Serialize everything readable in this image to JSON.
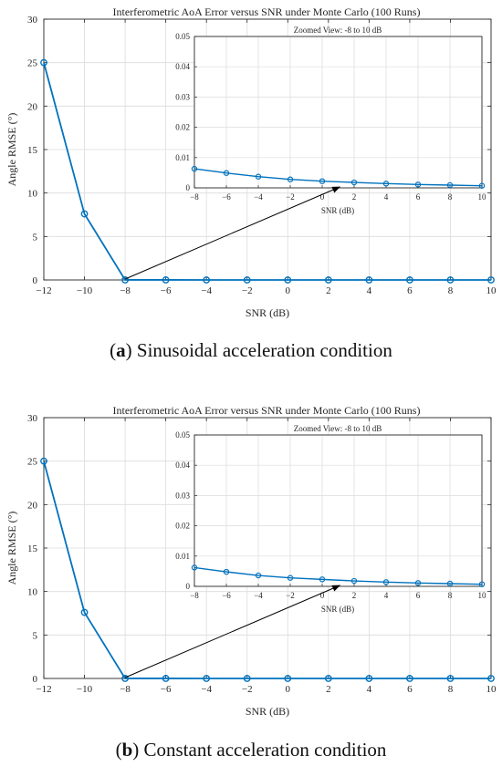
{
  "chart_data": [
    {
      "type": "line",
      "title": "Interferometric AoA Error versus SNR under Monte Carlo (100 Runs)",
      "xlabel": "SNR (dB)",
      "ylabel": "Angle RMSE (°)",
      "xlim": [
        -12,
        10
      ],
      "ylim": [
        0,
        30
      ],
      "xticks": [
        -12,
        -10,
        -8,
        -6,
        -4,
        -2,
        0,
        2,
        4,
        6,
        8,
        10
      ],
      "yticks": [
        0,
        5,
        10,
        15,
        20,
        25,
        30
      ],
      "grid": true,
      "series_color": "#0072BD",
      "x": [
        -12,
        -10,
        -8,
        -6,
        -4,
        -2,
        0,
        2,
        4,
        6,
        8,
        10
      ],
      "y": [
        25,
        7.6,
        0.0063,
        0.0049,
        0.0037,
        0.0028,
        0.0022,
        0.0018,
        0.0014,
        0.0011,
        0.0009,
        0.0007
      ],
      "inset": {
        "title": "Zoomed View: -8 to 10 dB",
        "xlabel": "SNR (dB)",
        "xlim": [
          -8,
          10
        ],
        "ylim": [
          0,
          0.05
        ],
        "xticks": [
          -8,
          -6,
          -4,
          -2,
          0,
          2,
          4,
          6,
          8,
          10
        ],
        "yticks": [
          "0",
          "0.01",
          "0.02",
          "0.03",
          "0.04",
          "0.05"
        ],
        "x": [
          -8,
          -6,
          -4,
          -2,
          0,
          2,
          4,
          6,
          8,
          10
        ],
        "y": [
          0.0063,
          0.0049,
          0.0037,
          0.0028,
          0.0022,
          0.0018,
          0.0014,
          0.0011,
          0.0009,
          0.0007
        ]
      }
    },
    {
      "type": "line",
      "title": "Interferometric AoA Error versus SNR under Monte Carlo (100 Runs)",
      "xlabel": "SNR (dB)",
      "ylabel": "Angle RMSE (°)",
      "xlim": [
        -12,
        10
      ],
      "ylim": [
        0,
        30
      ],
      "xticks": [
        -12,
        -10,
        -8,
        -6,
        -4,
        -2,
        0,
        2,
        4,
        6,
        8,
        10
      ],
      "yticks": [
        0,
        5,
        10,
        15,
        20,
        25,
        30
      ],
      "grid": true,
      "series_color": "#0072BD",
      "x": [
        -12,
        -10,
        -8,
        -6,
        -4,
        -2,
        0,
        2,
        4,
        6,
        8,
        10
      ],
      "y": [
        25,
        7.6,
        0.0062,
        0.0048,
        0.0036,
        0.0028,
        0.0023,
        0.0018,
        0.0014,
        0.0011,
        0.0009,
        0.0007
      ],
      "inset": {
        "title": "Zoomed View: -8 to 10 dB",
        "xlabel": "SNR (dB)",
        "xlim": [
          -8,
          10
        ],
        "ylim": [
          0,
          0.05
        ],
        "xticks": [
          -8,
          -6,
          -4,
          -2,
          0,
          2,
          4,
          6,
          8,
          10
        ],
        "yticks": [
          "0",
          "0.01",
          "0.02",
          "0.03",
          "0.04",
          "0.05"
        ],
        "x": [
          -8,
          -6,
          -4,
          -2,
          0,
          2,
          4,
          6,
          8,
          10
        ],
        "y": [
          0.0062,
          0.0048,
          0.0036,
          0.0028,
          0.0023,
          0.0018,
          0.0014,
          0.0011,
          0.0009,
          0.0007
        ]
      }
    }
  ],
  "captions": [
    {
      "letter": "a",
      "text": " Sinusoidal acceleration condition"
    },
    {
      "letter": "b",
      "text": " Constant acceleration condition"
    }
  ]
}
